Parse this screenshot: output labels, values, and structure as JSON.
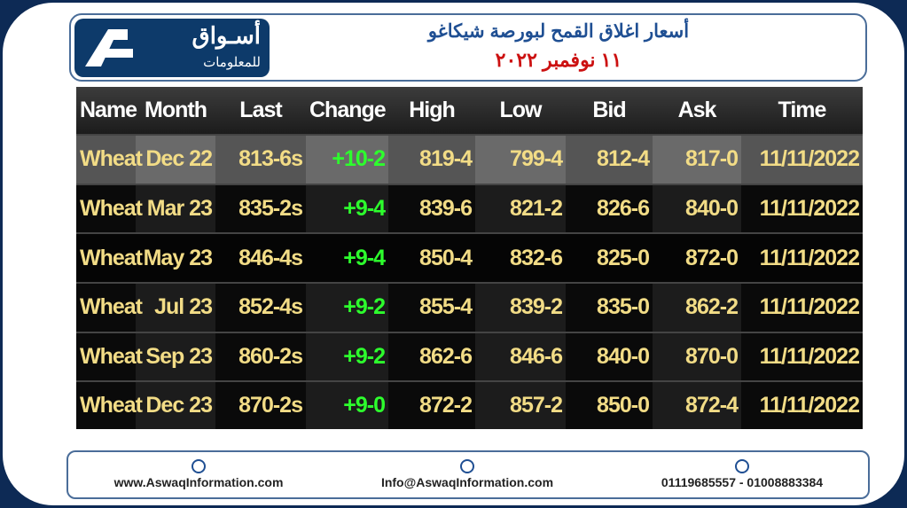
{
  "header": {
    "logo_arabic": "أسـواق",
    "logo_subtitle": "للمعلومات",
    "title": "أسعار اغلاق القمح لبورصة شيكاغو",
    "date": "١١ نوفمبر ٢٠٢٢"
  },
  "table": {
    "columns": [
      "Name",
      "Month",
      "Last",
      "Change",
      "High",
      "Low",
      "Bid",
      "Ask",
      "Time"
    ],
    "rows": [
      [
        "Wheat",
        "Dec 22",
        "813-6s",
        "+10-2",
        "819-4",
        "799-4",
        "812-4",
        "817-0",
        "11/11/2022"
      ],
      [
        "Wheat",
        "Mar 23",
        "835-2s",
        "+9-4",
        "839-6",
        "821-2",
        "826-6",
        "840-0",
        "11/11/2022"
      ],
      [
        "Wheat",
        "May 23",
        "846-4s",
        "+9-4",
        "850-4",
        "832-6",
        "825-0",
        "872-0",
        "11/11/2022"
      ],
      [
        "Wheat",
        "Jul 23",
        "852-4s",
        "+9-2",
        "855-4",
        "839-2",
        "835-0",
        "862-2",
        "11/11/2022"
      ],
      [
        "Wheat",
        "Sep 23",
        "860-2s",
        "+9-2",
        "862-6",
        "846-6",
        "840-0",
        "870-0",
        "11/11/2022"
      ],
      [
        "Wheat",
        "Dec 23",
        "870-2s",
        "+9-0",
        "872-2",
        "857-2",
        "850-0",
        "872-4",
        "11/11/2022"
      ]
    ]
  },
  "footer": {
    "website": "www.AswaqInformation.com",
    "email": "Info@AswaqInformation.com",
    "phone": "01119685557 - 01008883384"
  }
}
